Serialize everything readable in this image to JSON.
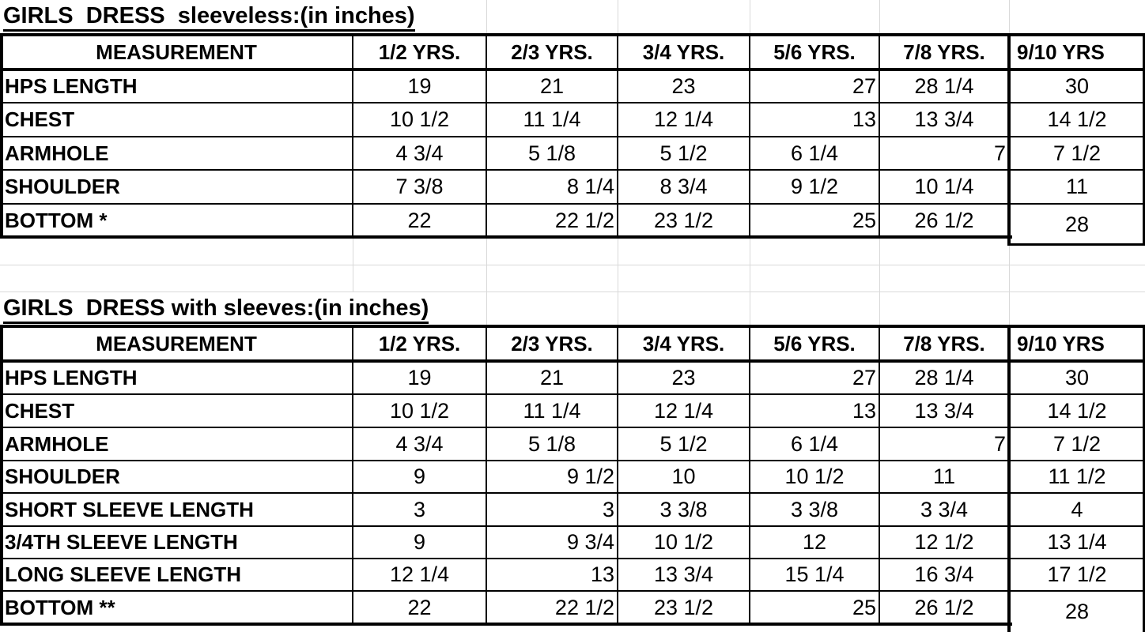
{
  "colors": {
    "background": "#ffffff",
    "gridline": "#d9d9d9",
    "border": "#000000",
    "text": "#000000"
  },
  "tables": [
    {
      "title": "GIRLS  DRESS  sleeveless:(in inches)",
      "columns": [
        "MEASUREMENT",
        "1/2 YRS.",
        "2/3 YRS.",
        "3/4 YRS.",
        "5/6 YRS.",
        "7/8 YRS.",
        "9/10 YRS"
      ],
      "rows": [
        {
          "label": "HPS LENGTH",
          "values": [
            "19",
            "21",
            "23",
            "27",
            "28 1/4",
            "30"
          ],
          "align": [
            "center",
            "center",
            "center",
            "right",
            "center",
            "center"
          ]
        },
        {
          "label": "CHEST",
          "values": [
            "10 1/2",
            "11 1/4",
            "12 1/4",
            "13",
            "13 3/4",
            "14 1/2"
          ],
          "align": [
            "center",
            "center",
            "center",
            "right",
            "center",
            "center"
          ]
        },
        {
          "label": "ARMHOLE",
          "values": [
            "4 3/4",
            "5 1/8",
            "5 1/2",
            "6 1/4",
            "7",
            "7 1/2"
          ],
          "align": [
            "center",
            "center",
            "center",
            "center",
            "right",
            "center"
          ]
        },
        {
          "label": "SHOULDER",
          "values": [
            "7 3/8",
            "8 1/4",
            "8 3/4",
            "9 1/2",
            "10 1/4",
            "11"
          ],
          "align": [
            "center",
            "right",
            "center",
            "center",
            "center",
            "center"
          ]
        },
        {
          "label": "BOTTOM *",
          "values": [
            "22",
            "22 1/2",
            "23 1/2",
            "25",
            "26 1/2",
            "28"
          ],
          "align": [
            "center",
            "right",
            "center",
            "right",
            "center",
            "center"
          ]
        }
      ]
    },
    {
      "title": "GIRLS  DRESS with sleeves:(in inches)",
      "columns": [
        "MEASUREMENT",
        "1/2 YRS.",
        "2/3 YRS.",
        "3/4 YRS.",
        "5/6 YRS.",
        "7/8 YRS.",
        "9/10 YRS"
      ],
      "rows": [
        {
          "label": "HPS LENGTH",
          "values": [
            "19",
            "21",
            "23",
            "27",
            "28 1/4",
            "30"
          ],
          "align": [
            "center",
            "center",
            "center",
            "right",
            "center",
            "center"
          ]
        },
        {
          "label": "CHEST",
          "values": [
            "10 1/2",
            "11 1/4",
            "12 1/4",
            "13",
            "13 3/4",
            "14 1/2"
          ],
          "align": [
            "center",
            "center",
            "center",
            "right",
            "center",
            "center"
          ]
        },
        {
          "label": "ARMHOLE",
          "values": [
            "4 3/4",
            "5 1/8",
            "5 1/2",
            "6 1/4",
            "7",
            "7 1/2"
          ],
          "align": [
            "center",
            "center",
            "center",
            "center",
            "right",
            "center"
          ]
        },
        {
          "label": "SHOULDER",
          "values": [
            "9",
            "9 1/2",
            "10",
            "10 1/2",
            "11",
            "11 1/2"
          ],
          "align": [
            "center",
            "right",
            "center",
            "center",
            "center",
            "center"
          ]
        },
        {
          "label": "SHORT SLEEVE LENGTH",
          "values": [
            "3",
            "3",
            "3 3/8",
            "3 3/8",
            "3 3/4",
            "4"
          ],
          "align": [
            "center",
            "right",
            "center",
            "center",
            "center",
            "center"
          ]
        },
        {
          "label": "3/4TH SLEEVE LENGTH",
          "values": [
            "9",
            "9 3/4",
            "10 1/2",
            "12",
            "12 1/2",
            "13 1/4"
          ],
          "align": [
            "center",
            "right",
            "center",
            "center",
            "center",
            "center"
          ]
        },
        {
          "label": "LONG SLEEVE LENGTH",
          "values": [
            "12 1/4",
            "13",
            "13 3/4",
            "15 1/4",
            "16 3/4",
            "17 1/2"
          ],
          "align": [
            "center",
            "right",
            "center",
            "center",
            "center",
            "center"
          ]
        },
        {
          "label": "BOTTOM **",
          "values": [
            "22",
            "22 1/2",
            "23 1/2",
            "25",
            "26 1/2",
            "28"
          ],
          "align": [
            "center",
            "right",
            "center",
            "right",
            "center",
            "center"
          ]
        }
      ]
    }
  ]
}
